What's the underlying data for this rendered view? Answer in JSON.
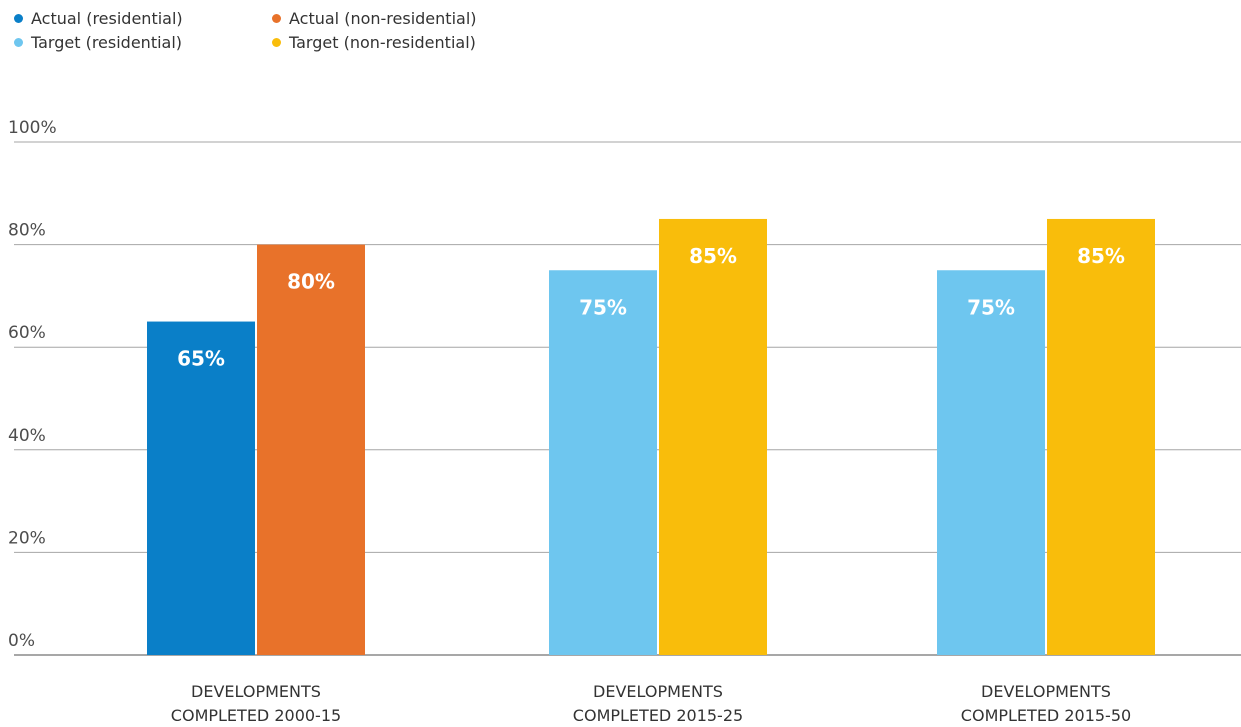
{
  "legend": [
    {
      "label": "Actual (residential)",
      "color": "#0a7fc8"
    },
    {
      "label": "Target (residential)",
      "color": "#6ec6ef"
    },
    {
      "label": "Actual (non-residential)",
      "color": "#e8722a"
    },
    {
      "label": "Target (non-residential)",
      "color": "#f9bd0b"
    }
  ],
  "chart_data": {
    "type": "bar",
    "categories": [
      [
        "DEVELOPMENTS",
        "COMPLETED 2000-15"
      ],
      [
        "DEVELOPMENTS",
        "COMPLETED 2015-25"
      ],
      [
        "DEVELOPMENTS",
        "COMPLETED 2015-50"
      ]
    ],
    "bars": [
      [
        {
          "value": 65,
          "label": "65%",
          "color": "#0a7fc8"
        },
        {
          "value": 80,
          "label": "80%",
          "color": "#e8722a"
        }
      ],
      [
        {
          "value": 75,
          "label": "75%",
          "color": "#6ec6ef"
        },
        {
          "value": 85,
          "label": "85%",
          "color": "#f9bd0b"
        }
      ],
      [
        {
          "value": 75,
          "label": "75%",
          "color": "#6ec6ef"
        },
        {
          "value": 85,
          "label": "85%",
          "color": "#f9bd0b"
        }
      ]
    ],
    "yticks": [
      0,
      20,
      40,
      60,
      80,
      100
    ],
    "ytick_labels": [
      "0%",
      "20%",
      "40%",
      "60%",
      "80%",
      "100%"
    ],
    "ylim": [
      0,
      100
    ],
    "grid": true,
    "legend_position": "top-left"
  }
}
